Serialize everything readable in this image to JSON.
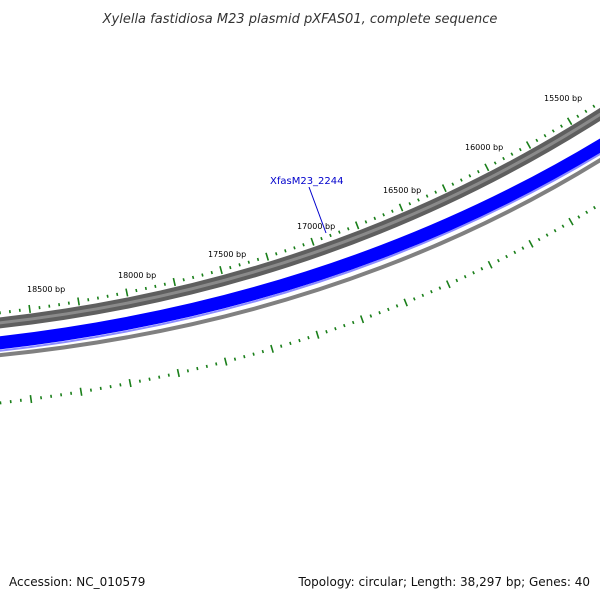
{
  "title": "Xylella fastidiosa M23 plasmid pXFAS01, complete sequence",
  "footer": {
    "accession": "Accession: NC_010579",
    "summary": "Topology: circular; Length: 38,297 bp; Genes: 40"
  },
  "ticks": [
    {
      "label": "15500 bp",
      "bp": 15500
    },
    {
      "label": "16000 bp",
      "bp": 16000
    },
    {
      "label": "16500 bp",
      "bp": 16500
    },
    {
      "label": "17000 bp",
      "bp": 17000
    },
    {
      "label": "17500 bp",
      "bp": 17500
    },
    {
      "label": "18000 bp",
      "bp": 18000
    },
    {
      "label": "18500 bp",
      "bp": 18500
    }
  ],
  "gene": {
    "label": "XfasM23_2244"
  },
  "colors": {
    "outer_track": "#5f5f5f",
    "outer_track_highlight": "#8a8a8a",
    "cds_track": "#0000ff",
    "inner_track": "#808080",
    "ticks": "#1a7f1a",
    "gene_label": "#0000cc"
  }
}
